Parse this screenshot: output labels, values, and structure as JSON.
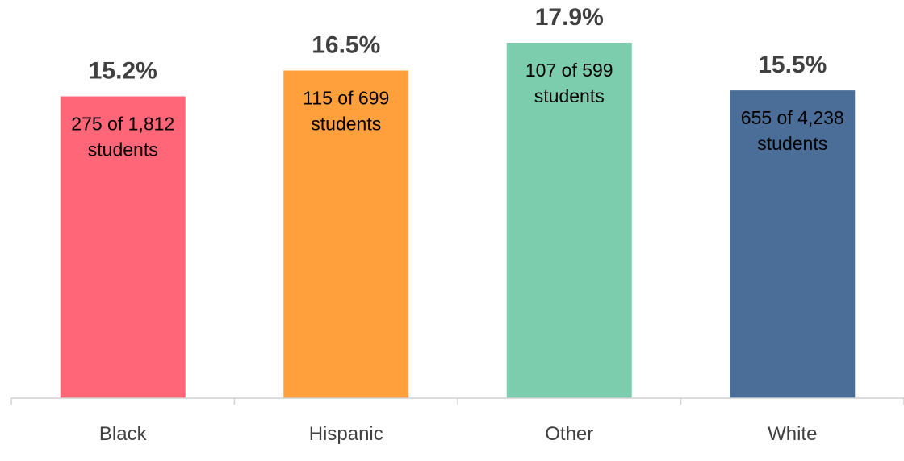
{
  "chart_data": {
    "type": "bar",
    "categories": [
      "Black",
      "Hispanic",
      "Other",
      "White"
    ],
    "values": [
      15.2,
      16.5,
      17.9,
      15.5
    ],
    "value_labels": [
      "15.2%",
      "16.5%",
      "17.9%",
      "15.5%"
    ],
    "count_labels": [
      [
        "275 of 1,812",
        "students"
      ],
      [
        "115 of 699",
        "students"
      ],
      [
        "107 of 599",
        "students"
      ],
      [
        "655 of 4,238",
        "students"
      ]
    ],
    "colors": [
      "#FF6677",
      "#FFA03C",
      "#7CCDAE",
      "#4A6E97"
    ],
    "ylim": [
      0,
      17.9
    ],
    "grid": false
  }
}
